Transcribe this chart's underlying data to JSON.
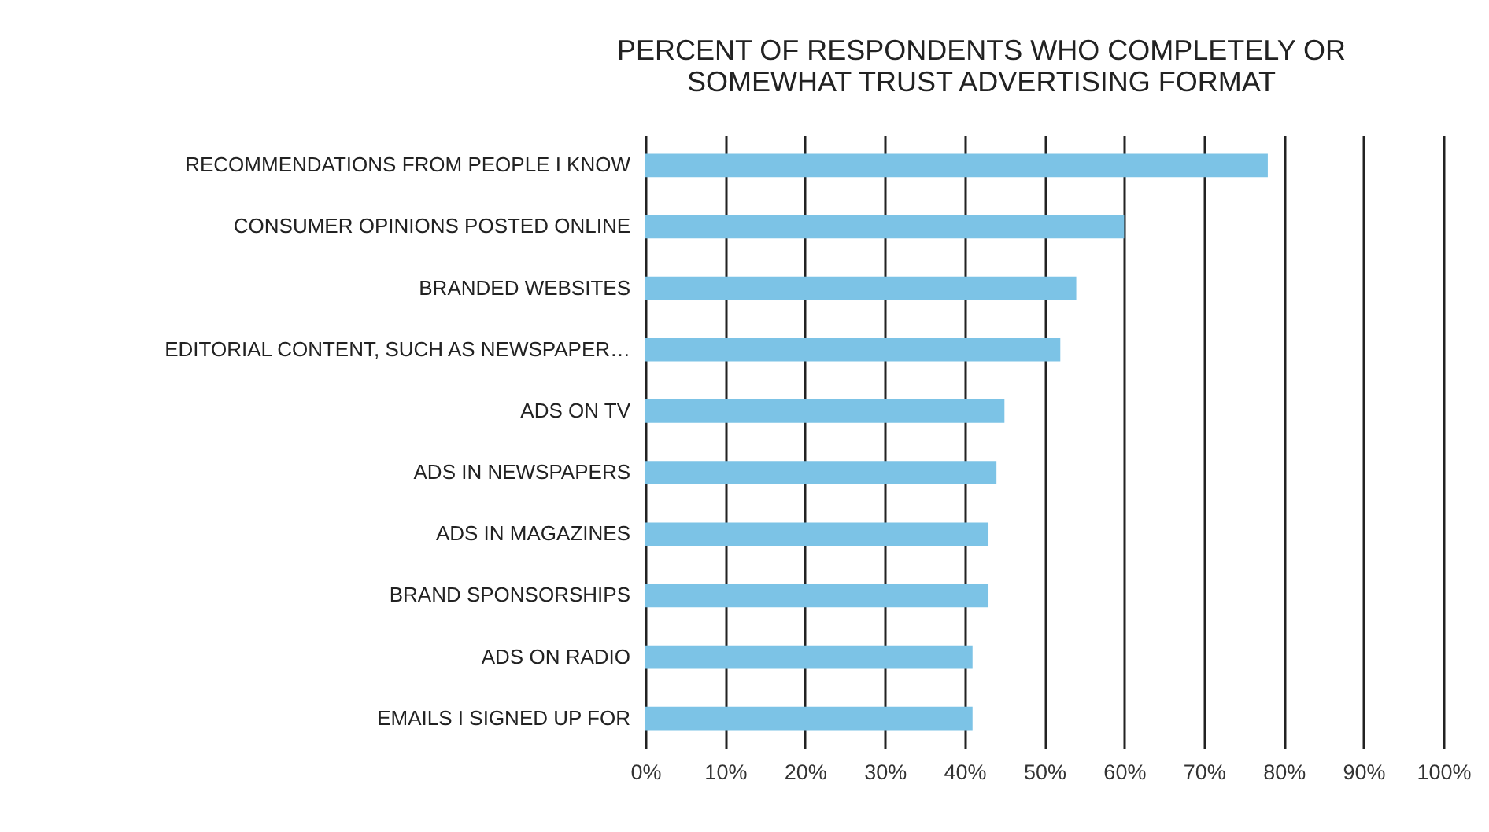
{
  "chart_data": {
    "type": "bar",
    "orientation": "horizontal",
    "title": "PERCENT OF RESPONDENTS WHO COMPLETELY OR SOMEWHAT TRUST ADVERTISING FORMAT",
    "categories": [
      "RECOMMENDATIONS FROM PEOPLE I KNOW",
      "CONSUMER OPINIONS POSTED ONLINE",
      "BRANDED WEBSITES",
      "EDITORIAL CONTENT, SUCH AS NEWSPAPER…",
      "ADS ON TV",
      "ADS IN NEWSPAPERS",
      "ADS IN MAGAZINES",
      "BRAND SPONSORSHIPS",
      "ADS ON RADIO",
      "EMAILS I SIGNED UP FOR"
    ],
    "values": [
      78,
      60,
      54,
      52,
      45,
      44,
      43,
      43,
      41,
      41
    ],
    "color": "#7cc3e6",
    "xlim": [
      0,
      100
    ],
    "xticks": [
      {
        "value": 0,
        "label": "0%"
      },
      {
        "value": 10,
        "label": "10%"
      },
      {
        "value": 20,
        "label": "20%"
      },
      {
        "value": 30,
        "label": "30%"
      },
      {
        "value": 40,
        "label": "40%"
      },
      {
        "value": 50,
        "label": "50%"
      },
      {
        "value": 60,
        "label": "60%"
      },
      {
        "value": 70,
        "label": "70%"
      },
      {
        "value": 80,
        "label": "80%"
      },
      {
        "value": 90,
        "label": "90%"
      },
      {
        "value": 100,
        "label": "100%"
      }
    ],
    "grid": "x"
  }
}
